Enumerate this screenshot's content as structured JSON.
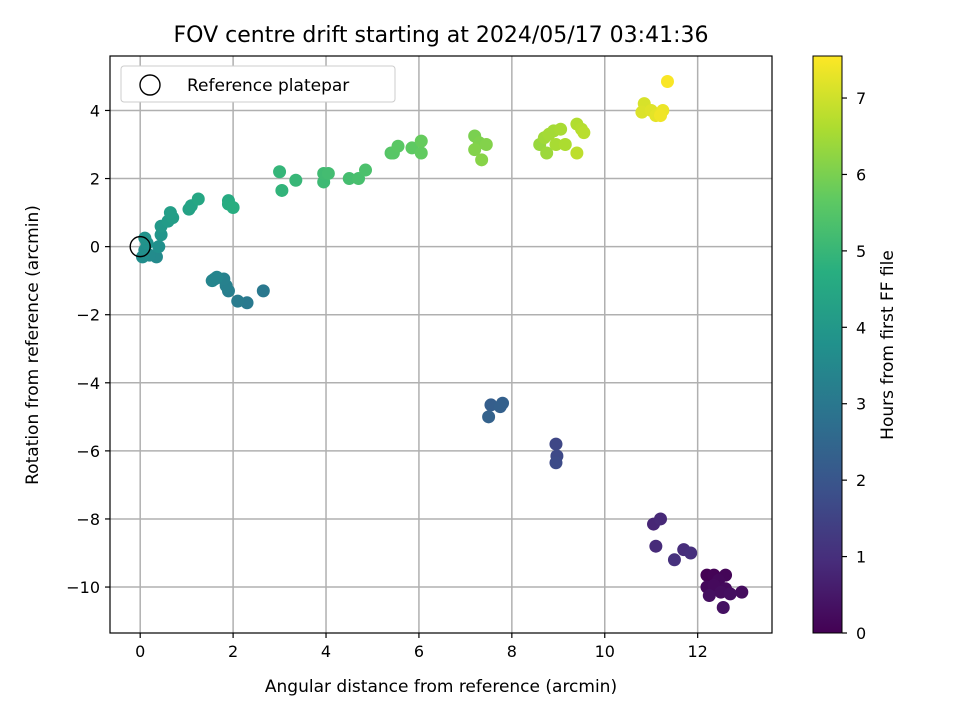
{
  "chart_data": {
    "type": "scatter",
    "title": "FOV centre drift starting at 2024/05/17 03:41:36",
    "xlabel": "Angular distance from reference (arcmin)",
    "ylabel": "Rotation from reference (arcmin)",
    "xlim": [
      -0.65,
      13.6
    ],
    "ylim": [
      -11.35,
      5.6
    ],
    "xticks": [
      0,
      2,
      4,
      6,
      8,
      10,
      12
    ],
    "yticks": [
      -10,
      -8,
      -6,
      -4,
      -2,
      0,
      2,
      4
    ],
    "grid": true,
    "legend": {
      "position": "top-left",
      "entries": [
        "Reference platepar"
      ]
    },
    "reference_point": {
      "x": 0,
      "y": 0
    },
    "colorbar": {
      "label": "Hours from first FF file",
      "colormap": "viridis",
      "range": [
        0,
        7.55
      ],
      "ticks": [
        0,
        1,
        2,
        3,
        4,
        5,
        6,
        7
      ]
    },
    "points": [
      {
        "x": 12.2,
        "y": -9.65,
        "c": 0.0
      },
      {
        "x": 12.35,
        "y": -9.65,
        "c": 0.05
      },
      {
        "x": 12.6,
        "y": -9.65,
        "c": 0.1
      },
      {
        "x": 12.45,
        "y": -9.8,
        "c": 0.15
      },
      {
        "x": 12.2,
        "y": -10.0,
        "c": 0.15
      },
      {
        "x": 12.35,
        "y": -9.95,
        "c": 0.2
      },
      {
        "x": 12.6,
        "y": -10.05,
        "c": 0.2
      },
      {
        "x": 12.95,
        "y": -10.15,
        "c": 0.25
      },
      {
        "x": 12.5,
        "y": -10.15,
        "c": 0.25
      },
      {
        "x": 12.7,
        "y": -10.2,
        "c": 0.3
      },
      {
        "x": 12.25,
        "y": -10.25,
        "c": 0.3
      },
      {
        "x": 12.55,
        "y": -10.6,
        "c": 0.35
      },
      {
        "x": 11.05,
        "y": -8.15,
        "c": 0.8
      },
      {
        "x": 11.2,
        "y": -8.0,
        "c": 0.85
      },
      {
        "x": 11.1,
        "y": -8.8,
        "c": 0.9
      },
      {
        "x": 11.7,
        "y": -8.9,
        "c": 0.95
      },
      {
        "x": 11.85,
        "y": -9.0,
        "c": 1.0
      },
      {
        "x": 11.5,
        "y": -9.2,
        "c": 1.05
      },
      {
        "x": 8.95,
        "y": -5.8,
        "c": 1.6
      },
      {
        "x": 8.97,
        "y": -6.15,
        "c": 1.65
      },
      {
        "x": 8.95,
        "y": -6.35,
        "c": 1.7
      },
      {
        "x": 7.55,
        "y": -4.65,
        "c": 2.25
      },
      {
        "x": 7.8,
        "y": -4.6,
        "c": 2.3
      },
      {
        "x": 7.75,
        "y": -4.7,
        "c": 2.3
      },
      {
        "x": 7.5,
        "y": -5.0,
        "c": 2.35
      },
      {
        "x": 2.65,
        "y": -1.3,
        "c": 3.0
      },
      {
        "x": 2.3,
        "y": -1.65,
        "c": 3.05
      },
      {
        "x": 2.1,
        "y": -1.6,
        "c": 3.1
      },
      {
        "x": 1.9,
        "y": -1.3,
        "c": 3.2
      },
      {
        "x": 1.85,
        "y": -1.15,
        "c": 3.25
      },
      {
        "x": 1.8,
        "y": -0.95,
        "c": 3.3
      },
      {
        "x": 1.6,
        "y": -0.95,
        "c": 3.35
      },
      {
        "x": 1.55,
        "y": -1.0,
        "c": 3.4
      },
      {
        "x": 1.65,
        "y": -0.9,
        "c": 3.4
      },
      {
        "x": 0.35,
        "y": -0.3,
        "c": 3.55
      },
      {
        "x": 0.2,
        "y": -0.25,
        "c": 3.6
      },
      {
        "x": 0.05,
        "y": -0.3,
        "c": 3.65
      },
      {
        "x": 0.1,
        "y": -0.1,
        "c": 3.7
      },
      {
        "x": 0.4,
        "y": 0.0,
        "c": 3.75
      },
      {
        "x": 0.15,
        "y": 0.1,
        "c": 3.8
      },
      {
        "x": 0.1,
        "y": 0.25,
        "c": 3.85
      },
      {
        "x": 0.45,
        "y": 0.35,
        "c": 3.9
      },
      {
        "x": 0.45,
        "y": 0.6,
        "c": 4.0
      },
      {
        "x": 0.6,
        "y": 0.75,
        "c": 4.1
      },
      {
        "x": 0.7,
        "y": 0.85,
        "c": 4.15
      },
      {
        "x": 0.65,
        "y": 1.0,
        "c": 4.2
      },
      {
        "x": 1.05,
        "y": 1.1,
        "c": 4.3
      },
      {
        "x": 1.1,
        "y": 1.2,
        "c": 4.35
      },
      {
        "x": 1.25,
        "y": 1.4,
        "c": 4.45
      },
      {
        "x": 1.9,
        "y": 1.35,
        "c": 4.6
      },
      {
        "x": 1.9,
        "y": 1.25,
        "c": 4.65
      },
      {
        "x": 2.0,
        "y": 1.15,
        "c": 4.7
      },
      {
        "x": 3.05,
        "y": 1.65,
        "c": 4.9
      },
      {
        "x": 3.0,
        "y": 2.2,
        "c": 4.95
      },
      {
        "x": 3.35,
        "y": 1.95,
        "c": 5.0
      },
      {
        "x": 3.95,
        "y": 1.9,
        "c": 5.1
      },
      {
        "x": 3.95,
        "y": 2.15,
        "c": 5.15
      },
      {
        "x": 4.05,
        "y": 2.15,
        "c": 5.2
      },
      {
        "x": 4.5,
        "y": 2.0,
        "c": 5.25
      },
      {
        "x": 4.7,
        "y": 2.0,
        "c": 5.3
      },
      {
        "x": 4.85,
        "y": 2.25,
        "c": 5.35
      },
      {
        "x": 5.4,
        "y": 2.75,
        "c": 5.5
      },
      {
        "x": 5.45,
        "y": 2.75,
        "c": 5.55
      },
      {
        "x": 5.55,
        "y": 2.95,
        "c": 5.6
      },
      {
        "x": 5.85,
        "y": 2.9,
        "c": 5.65
      },
      {
        "x": 6.05,
        "y": 2.75,
        "c": 5.7
      },
      {
        "x": 6.05,
        "y": 3.1,
        "c": 5.75
      },
      {
        "x": 7.2,
        "y": 3.25,
        "c": 6.0
      },
      {
        "x": 7.3,
        "y": 3.05,
        "c": 6.05
      },
      {
        "x": 7.45,
        "y": 3.0,
        "c": 6.1
      },
      {
        "x": 7.2,
        "y": 2.85,
        "c": 6.1
      },
      {
        "x": 7.35,
        "y": 2.55,
        "c": 6.15
      },
      {
        "x": 8.6,
        "y": 3.0,
        "c": 6.35
      },
      {
        "x": 8.75,
        "y": 2.75,
        "c": 6.4
      },
      {
        "x": 8.7,
        "y": 3.2,
        "c": 6.45
      },
      {
        "x": 8.8,
        "y": 3.3,
        "c": 6.5
      },
      {
        "x": 8.9,
        "y": 3.4,
        "c": 6.5
      },
      {
        "x": 9.05,
        "y": 3.45,
        "c": 6.55
      },
      {
        "x": 8.95,
        "y": 3.0,
        "c": 6.55
      },
      {
        "x": 9.15,
        "y": 3.0,
        "c": 6.6
      },
      {
        "x": 9.4,
        "y": 3.6,
        "c": 6.65
      },
      {
        "x": 9.5,
        "y": 3.45,
        "c": 6.7
      },
      {
        "x": 9.55,
        "y": 3.35,
        "c": 6.75
      },
      {
        "x": 9.4,
        "y": 2.75,
        "c": 6.8
      },
      {
        "x": 10.85,
        "y": 4.2,
        "c": 7.1
      },
      {
        "x": 10.8,
        "y": 3.95,
        "c": 7.15
      },
      {
        "x": 11.0,
        "y": 4.0,
        "c": 7.2
      },
      {
        "x": 11.1,
        "y": 3.85,
        "c": 7.25
      },
      {
        "x": 11.2,
        "y": 3.9,
        "c": 7.3
      },
      {
        "x": 11.25,
        "y": 4.0,
        "c": 7.35
      },
      {
        "x": 11.2,
        "y": 3.85,
        "c": 7.4
      },
      {
        "x": 11.35,
        "y": 4.85,
        "c": 7.5
      }
    ]
  }
}
